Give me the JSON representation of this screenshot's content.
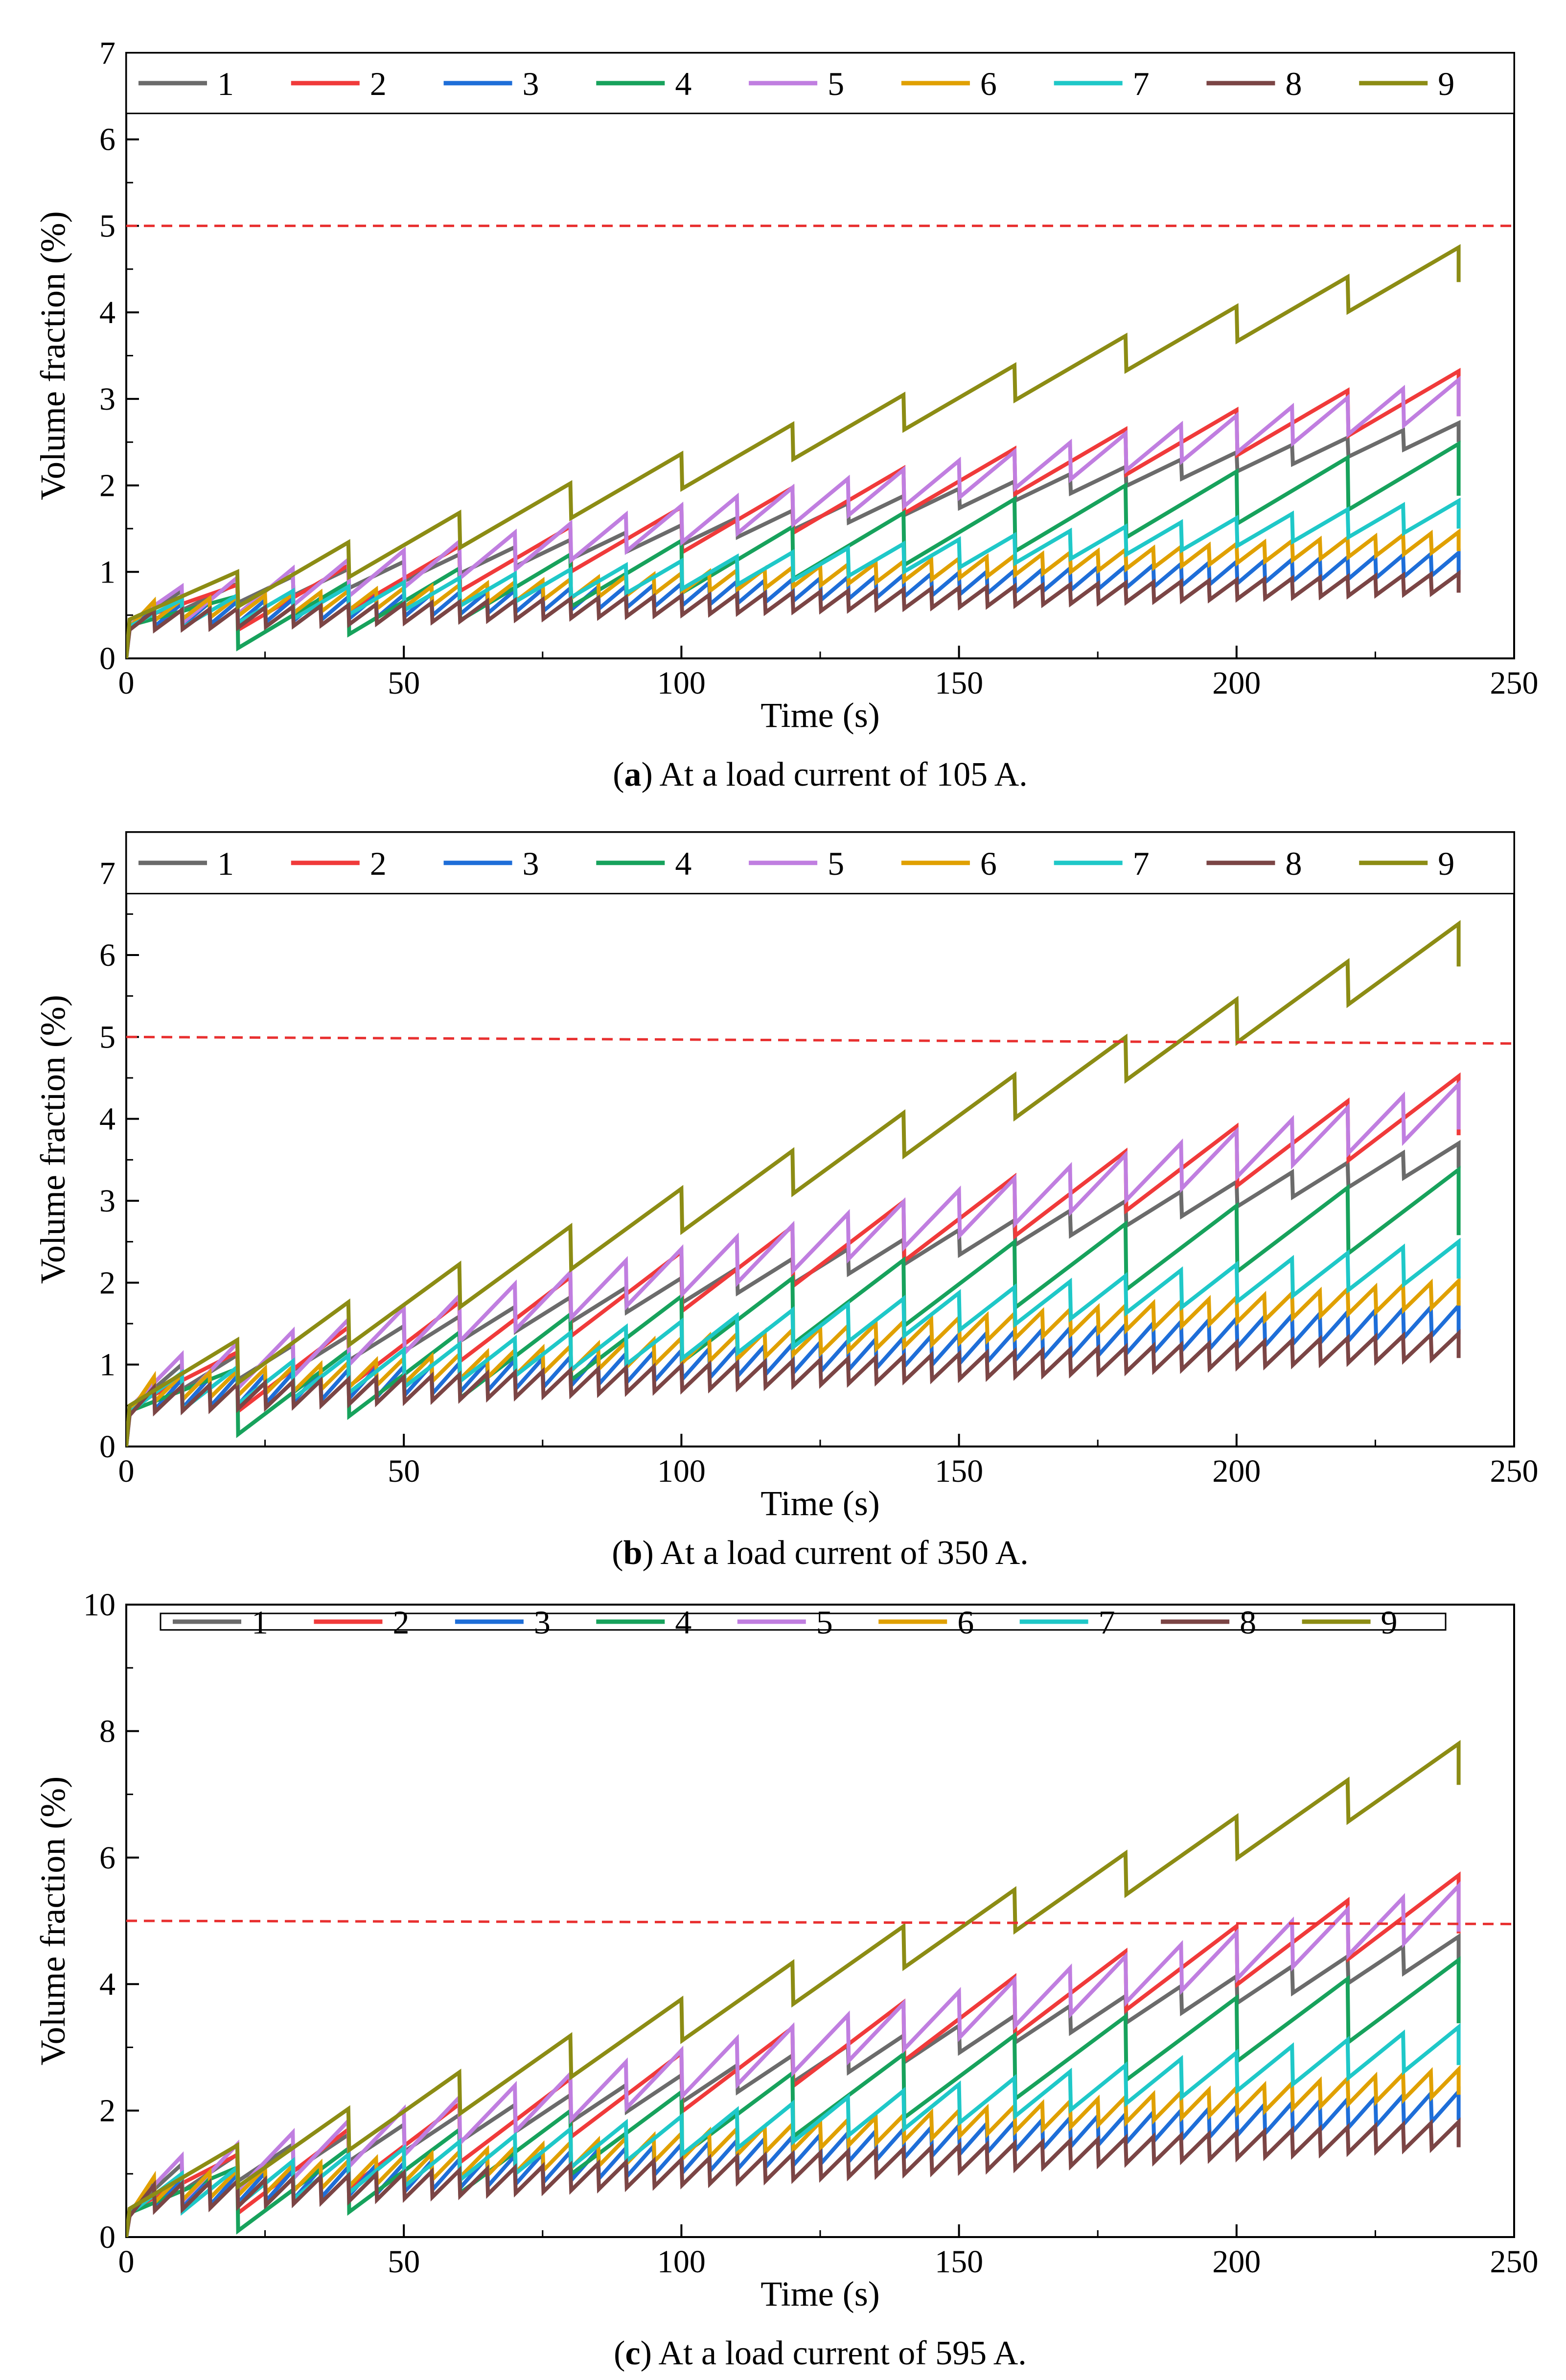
{
  "chart_data": [
    {
      "type": "line",
      "caption": {
        "letter": "a",
        "text": ") At a load current of 105 A."
      },
      "xlabel": "Time (s)",
      "ylabel": "Volume fraction (%)",
      "xlim": [
        0,
        250
      ],
      "ylim": [
        0,
        7
      ],
      "xticks": [
        "0",
        "50",
        "100",
        "150",
        "200",
        "250"
      ],
      "yticks": [
        "0",
        "1",
        "2",
        "3",
        "4",
        "5",
        "6",
        "7"
      ],
      "legend_top": 6.3,
      "threshold": {
        "start": 5.0,
        "end": 5.0
      },
      "series": [
        {
          "name": "1",
          "color": "#6b6b6b",
          "peak_start": 0.78,
          "peak_end": 2.72,
          "drop": 0.22,
          "reset_period": 10,
          "start": 0.4
        },
        {
          "name": "2",
          "color": "#f03a3a",
          "peak_start": 0.85,
          "peak_end": 3.32,
          "drop": 0.52,
          "reset_period": 20,
          "start": 0.42
        },
        {
          "name": "3",
          "color": "#1e6ed8",
          "peak_start": 0.62,
          "peak_end": 1.22,
          "drop": 0.25,
          "reset_period": 5,
          "start": 0.35
        },
        {
          "name": "4",
          "color": "#17a25c",
          "peak_start": 0.72,
          "peak_end": 2.48,
          "drop": 0.6,
          "reset_period": 20,
          "start": 0.38
        },
        {
          "name": "5",
          "color": "#c07ee0",
          "peak_start": 0.83,
          "peak_end": 3.22,
          "drop": 0.42,
          "reset_period": 10,
          "start": 0.41
        },
        {
          "name": "6",
          "color": "#e0a000",
          "peak_start": 0.66,
          "peak_end": 1.46,
          "drop": 0.22,
          "reset_period": 5,
          "start": 0.36
        },
        {
          "name": "7",
          "color": "#1fc8c8",
          "peak_start": 0.68,
          "peak_end": 1.82,
          "drop": 0.32,
          "reset_period": 10,
          "start": 0.37
        },
        {
          "name": "8",
          "color": "#7b4545",
          "peak_start": 0.55,
          "peak_end": 0.98,
          "drop": 0.22,
          "reset_period": 5,
          "start": 0.33
        },
        {
          "name": "9",
          "color": "#8c8c14",
          "peak_start": 1.0,
          "peak_end": 4.75,
          "drop": 0.4,
          "reset_period": 20,
          "start": 0.45
        }
      ]
    },
    {
      "type": "line",
      "caption": {
        "letter": "b",
        "text": ") At a load current of 350 A."
      },
      "xlabel": "Time (s)",
      "ylabel": "Volume fraction (%)",
      "xlim": [
        0,
        250
      ],
      "ylim": [
        0,
        7.5
      ],
      "xticks": [
        "0",
        "50",
        "100",
        "150",
        "200",
        "250"
      ],
      "yticks": [
        "0",
        "1",
        "2",
        "3",
        "4",
        "5",
        "6",
        "7"
      ],
      "legend_top": 6.75,
      "threshold": {
        "start": 5.0,
        "end": 4.92
      },
      "series": [
        {
          "name": "1",
          "color": "#6b6b6b",
          "peak_start": 1.0,
          "peak_end": 3.7,
          "drop": 0.3,
          "reset_period": 10,
          "start": 0.45
        },
        {
          "name": "2",
          "color": "#f03a3a",
          "peak_start": 1.15,
          "peak_end": 4.52,
          "drop": 0.72,
          "reset_period": 20,
          "start": 0.48
        },
        {
          "name": "3",
          "color": "#1e6ed8",
          "peak_start": 0.8,
          "peak_end": 1.72,
          "drop": 0.35,
          "reset_period": 5,
          "start": 0.4
        },
        {
          "name": "4",
          "color": "#17a25c",
          "peak_start": 0.95,
          "peak_end": 3.38,
          "drop": 0.8,
          "reset_period": 20,
          "start": 0.43
        },
        {
          "name": "5",
          "color": "#c07ee0",
          "peak_start": 1.12,
          "peak_end": 4.42,
          "drop": 0.55,
          "reset_period": 10,
          "start": 0.47
        },
        {
          "name": "6",
          "color": "#e0a000",
          "peak_start": 0.85,
          "peak_end": 2.02,
          "drop": 0.3,
          "reset_period": 5,
          "start": 0.41
        },
        {
          "name": "7",
          "color": "#1fc8c8",
          "peak_start": 0.9,
          "peak_end": 2.5,
          "drop": 0.45,
          "reset_period": 10,
          "start": 0.42
        },
        {
          "name": "8",
          "color": "#7b4545",
          "peak_start": 0.72,
          "peak_end": 1.38,
          "drop": 0.3,
          "reset_period": 5,
          "start": 0.38
        },
        {
          "name": "9",
          "color": "#8c8c14",
          "peak_start": 1.3,
          "peak_end": 6.38,
          "drop": 0.52,
          "reset_period": 20,
          "start": 0.5
        }
      ]
    },
    {
      "type": "line",
      "caption": {
        "letter": "c",
        "text": ") At a load current of 595 A."
      },
      "xlabel": "Time (s)",
      "ylabel": "Volume fraction (%)",
      "xlim": [
        0,
        250
      ],
      "ylim": [
        0,
        10
      ],
      "xticks": [
        "0",
        "50",
        "100",
        "150",
        "200",
        "250"
      ],
      "yticks": [
        "0",
        "2",
        "4",
        "6",
        "8",
        "10"
      ],
      "legend_top": 9.6,
      "threshold": {
        "start": 5.0,
        "end": 4.95
      },
      "series": [
        {
          "name": "1",
          "color": "#6b6b6b",
          "peak_start": 1.15,
          "peak_end": 4.75,
          "drop": 0.42,
          "reset_period": 10,
          "start": 0.4
        },
        {
          "name": "2",
          "color": "#f03a3a",
          "peak_start": 1.3,
          "peak_end": 5.72,
          "drop": 0.92,
          "reset_period": 20,
          "start": 0.42
        },
        {
          "name": "3",
          "color": "#1e6ed8",
          "peak_start": 0.9,
          "peak_end": 2.3,
          "drop": 0.45,
          "reset_period": 5,
          "start": 0.35
        },
        {
          "name": "4",
          "color": "#17a25c",
          "peak_start": 1.1,
          "peak_end": 4.38,
          "drop": 1.0,
          "reset_period": 20,
          "start": 0.38
        },
        {
          "name": "5",
          "color": "#c07ee0",
          "peak_start": 1.28,
          "peak_end": 5.55,
          "drop": 0.72,
          "reset_period": 10,
          "start": 0.41
        },
        {
          "name": "6",
          "color": "#e0a000",
          "peak_start": 0.95,
          "peak_end": 2.65,
          "drop": 0.4,
          "reset_period": 5,
          "start": 0.36
        },
        {
          "name": "7",
          "color": "#1fc8c8",
          "peak_start": 1.0,
          "peak_end": 3.32,
          "drop": 0.6,
          "reset_period": 10,
          "start": 0.37
        },
        {
          "name": "8",
          "color": "#7b4545",
          "peak_start": 0.82,
          "peak_end": 1.82,
          "drop": 0.4,
          "reset_period": 5,
          "start": 0.33
        },
        {
          "name": "9",
          "color": "#8c8c14",
          "peak_start": 1.45,
          "peak_end": 7.8,
          "drop": 0.65,
          "reset_period": 20,
          "start": 0.45
        }
      ]
    }
  ]
}
